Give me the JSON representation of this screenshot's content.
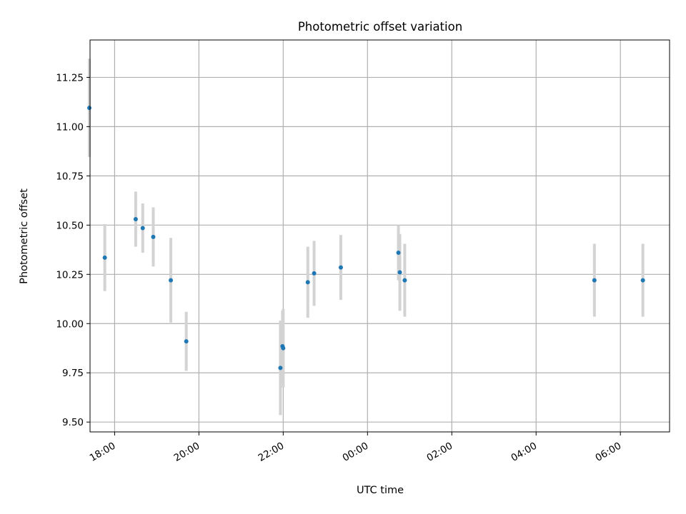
{
  "chart_data": {
    "type": "scatter",
    "title": "Photometric offset variation",
    "xlabel": "UTC time",
    "ylabel": "Photometric offset",
    "xlim": [
      "17:25",
      "07:10"
    ],
    "ylim": [
      9.45,
      11.44
    ],
    "x_ticks": [
      "18:00",
      "20:00",
      "22:00",
      "00:00",
      "02:00",
      "04:00",
      "06:00"
    ],
    "y_ticks": [
      "9.50",
      "9.75",
      "10.00",
      "10.25",
      "10.50",
      "10.75",
      "11.00",
      "11.25"
    ],
    "grid": true,
    "point_color": "#1f77b4",
    "errorbar_color": "#d3d3d3",
    "points": [
      {
        "x": "17:24",
        "y": 11.095,
        "err": 0.25
      },
      {
        "x": "17:46",
        "y": 10.335,
        "err": 0.17
      },
      {
        "x": "18:30",
        "y": 10.53,
        "err": 0.14
      },
      {
        "x": "18:40",
        "y": 10.485,
        "err": 0.125
      },
      {
        "x": "18:55",
        "y": 10.44,
        "err": 0.15
      },
      {
        "x": "19:20",
        "y": 10.22,
        "err": 0.215
      },
      {
        "x": "19:42",
        "y": 9.91,
        "err": 0.15
      },
      {
        "x": "21:56",
        "y": 9.775,
        "err": 0.24
      },
      {
        "x": "21:59",
        "y": 9.885,
        "err": 0.18
      },
      {
        "x": "22:00",
        "y": 9.875,
        "err": 0.2
      },
      {
        "x": "22:35",
        "y": 10.21,
        "err": 0.18
      },
      {
        "x": "22:44",
        "y": 10.255,
        "err": 0.165
      },
      {
        "x": "23:22",
        "y": 10.285,
        "err": 0.165
      },
      {
        "x": "00:44",
        "y": 10.36,
        "err": 0.14
      },
      {
        "x": "00:46",
        "y": 10.26,
        "err": 0.195
      },
      {
        "x": "00:53",
        "y": 10.22,
        "err": 0.185
      },
      {
        "x": "05:23",
        "y": 10.22,
        "err": 0.185
      },
      {
        "x": "06:32",
        "y": 10.22,
        "err": 0.185
      }
    ]
  }
}
